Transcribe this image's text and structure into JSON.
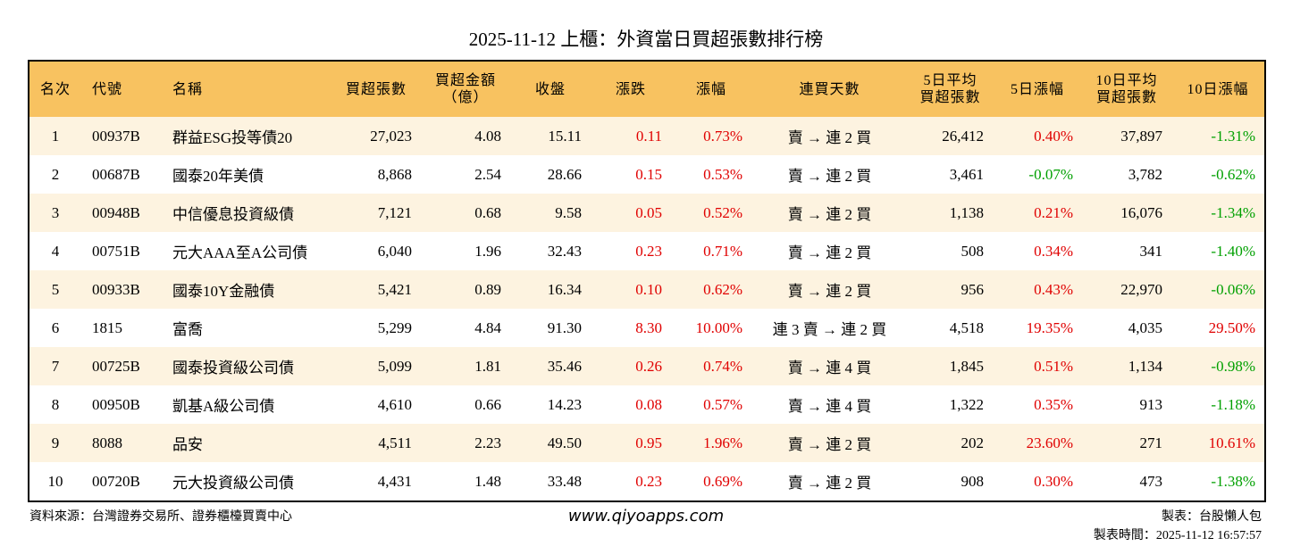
{
  "header": {
    "title": "2025-11-12 上櫃：外資當日買超張數排行榜"
  },
  "table": {
    "headers": [
      "名次",
      "代號",
      "名稱",
      "買超張數",
      "買超金額\n（億）",
      "收盤",
      "漲跌",
      "漲幅",
      "連買天數",
      "5日平均\n買超張數",
      "5日漲幅",
      "10日平均\n買超張數",
      "10日漲幅"
    ],
    "rows": [
      [
        "1",
        "00937B",
        "群益ESG投等債20",
        "27,023",
        "4.08",
        "15.11",
        "0.11",
        "0.73%",
        "賣 → 連 2 買",
        "26,412",
        "0.40%",
        "37,897",
        "-1.31%"
      ],
      [
        "2",
        "00687B",
        "國泰20年美債",
        "8,868",
        "2.54",
        "28.66",
        "0.15",
        "0.53%",
        "賣 → 連 2 買",
        "3,461",
        "-0.07%",
        "3,782",
        "-0.62%"
      ],
      [
        "3",
        "00948B",
        "中信優息投資級債",
        "7,121",
        "0.68",
        "9.58",
        "0.05",
        "0.52%",
        "賣 → 連 2 買",
        "1,138",
        "0.21%",
        "16,076",
        "-1.34%"
      ],
      [
        "4",
        "00751B",
        "元大AAA至A公司債",
        "6,040",
        "1.96",
        "32.43",
        "0.23",
        "0.71%",
        "賣 → 連 2 買",
        "508",
        "0.34%",
        "341",
        "-1.40%"
      ],
      [
        "5",
        "00933B",
        "國泰10Y金融債",
        "5,421",
        "0.89",
        "16.34",
        "0.10",
        "0.62%",
        "賣 → 連 2 買",
        "956",
        "0.43%",
        "22,970",
        "-0.06%"
      ],
      [
        "6",
        "1815",
        "富喬",
        "5,299",
        "4.84",
        "91.30",
        "8.30",
        "10.00%",
        "連 3 賣 → 連 2 買",
        "4,518",
        "19.35%",
        "4,035",
        "29.50%"
      ],
      [
        "7",
        "00725B",
        "國泰投資級公司債",
        "5,099",
        "1.81",
        "35.46",
        "0.26",
        "0.74%",
        "賣 → 連 4 買",
        "1,845",
        "0.51%",
        "1,134",
        "-0.98%"
      ],
      [
        "8",
        "00950B",
        "凱基A級公司債",
        "4,610",
        "0.66",
        "14.23",
        "0.08",
        "0.57%",
        "賣 → 連 4 買",
        "1,322",
        "0.35%",
        "913",
        "-1.18%"
      ],
      [
        "9",
        "8088",
        "品安",
        "4,511",
        "2.23",
        "49.50",
        "0.95",
        "1.96%",
        "賣 → 連 2 買",
        "202",
        "23.60%",
        "271",
        "10.61%"
      ],
      [
        "10",
        "00720B",
        "元大投資級公司債",
        "4,431",
        "1.48",
        "33.48",
        "0.23",
        "0.69%",
        "賣 → 連 2 買",
        "908",
        "0.30%",
        "473",
        "-1.38%"
      ]
    ]
  },
  "footer": {
    "source": "資料來源：台灣證券交易所、證券櫃檯買賣中心",
    "website": "www.qiyoapps.com",
    "maker": "製表：台股懶人包",
    "time": "製表時間：2025-11-12 16:57:57"
  }
}
